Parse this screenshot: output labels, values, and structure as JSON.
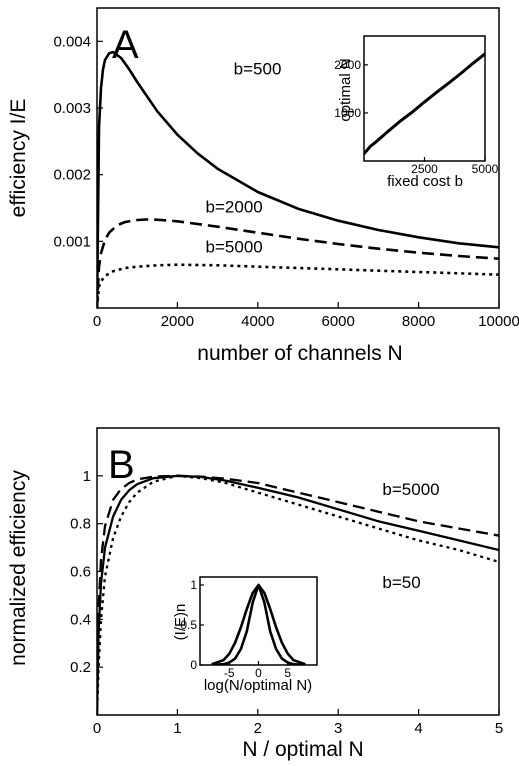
{
  "chart_data": [
    {
      "type": "line",
      "panel_letter": "A",
      "xlabel": "number of channels N",
      "ylabel": "efficiency I/E",
      "xlim": [
        0,
        10000
      ],
      "ylim": [
        0,
        0.0045
      ],
      "xticks": [
        0,
        2000,
        4000,
        6000,
        8000,
        10000
      ],
      "xtick_labels": [
        "0",
        "2000",
        "4000",
        "6000",
        "8000",
        "10000"
      ],
      "yticks": [
        0.001,
        0.002,
        0.003,
        0.004
      ],
      "ytick_labels": [
        "0.001",
        "0.002",
        "0.003",
        "0.004"
      ],
      "grid": false,
      "series": [
        {
          "name": "b=500",
          "style": "solid",
          "x": [
            0,
            50,
            100,
            150,
            200,
            300,
            400,
            600,
            800,
            1000,
            1500,
            2000,
            2500,
            3000,
            4000,
            5000,
            6000,
            7000,
            8000,
            9000,
            10000
          ],
          "y": [
            0,
            0.0027,
            0.0033,
            0.00358,
            0.00372,
            0.00382,
            0.00384,
            0.00375,
            0.00358,
            0.00339,
            0.00295,
            0.0026,
            0.00232,
            0.00209,
            0.00174,
            0.00149,
            0.00131,
            0.00117,
            0.00106,
            0.00097,
            0.00091
          ]
        },
        {
          "name": "b=2000",
          "style": "dashed",
          "x": [
            0,
            50,
            100,
            200,
            300,
            500,
            700,
            1000,
            1300,
            1600,
            2000,
            3000,
            4000,
            5000,
            6000,
            7000,
            8000,
            9000,
            10000
          ],
          "y": [
            0,
            0.00062,
            0.00082,
            0.00102,
            0.00113,
            0.00124,
            0.00129,
            0.00132,
            0.00133,
            0.00132,
            0.0013,
            0.00122,
            0.00113,
            0.00104,
            0.00096,
            0.00089,
            0.00083,
            0.00078,
            0.00074
          ]
        },
        {
          "name": "b=5000",
          "style": "dotted",
          "x": [
            0,
            50,
            100,
            200,
            400,
            700,
            1000,
            1500,
            2000,
            3000,
            4000,
            5000,
            6000,
            7000,
            8000,
            9000,
            10000
          ],
          "y": [
            0,
            0.00032,
            0.0004,
            0.00048,
            0.00055,
            0.0006,
            0.00062,
            0.00064,
            0.00065,
            0.00064,
            0.00062,
            0.0006,
            0.00058,
            0.00056,
            0.00054,
            0.00052,
            0.0005
          ]
        }
      ],
      "annotations": [
        {
          "text": "b=500",
          "x": 3400,
          "y": 0.0035
        },
        {
          "text": "b=2000",
          "x": 2700,
          "y": 0.00143
        },
        {
          "text": "b=5000",
          "x": 2700,
          "y": 0.00083
        }
      ],
      "inset": {
        "xlabel": "fixed cost b",
        "ylabel": "optimal N",
        "xlim": [
          0,
          5000
        ],
        "ylim": [
          0,
          2600
        ],
        "xticks": [
          2500,
          5000
        ],
        "xtick_labels": [
          "2500",
          "5000"
        ],
        "yticks": [
          1000,
          2000
        ],
        "ytick_labels": [
          "1000",
          "2000"
        ],
        "series": [
          {
            "style": "solid",
            "x": [
              0,
              250,
              500,
              1000,
              1500,
              2000,
              2500,
              3000,
              3500,
              4000,
              4500,
              5000
            ],
            "y": [
              150,
              300,
              400,
              620,
              830,
              1020,
              1230,
              1430,
              1620,
              1820,
              2030,
              2230
            ]
          }
        ]
      }
    },
    {
      "type": "line",
      "panel_letter": "B",
      "xlabel": "N / optimal N",
      "ylabel": "normalized efficiency",
      "xlim": [
        0,
        5
      ],
      "ylim": [
        0,
        1.2
      ],
      "xticks": [
        0,
        1,
        2,
        3,
        4,
        5
      ],
      "xtick_labels": [
        "0",
        "1",
        "2",
        "3",
        "4",
        "5"
      ],
      "yticks": [
        0.2,
        0.4,
        0.6,
        0.8,
        1
      ],
      "ytick_labels": [
        "0.2",
        "0.4",
        "0.6",
        "0.8",
        "1"
      ],
      "grid": false,
      "series": [
        {
          "style": "solid",
          "x": [
            0,
            0.02,
            0.05,
            0.1,
            0.2,
            0.3,
            0.4,
            0.5,
            0.7,
            1,
            1.3,
            1.6,
            2,
            2.5,
            3,
            3.5,
            4,
            4.5,
            5
          ],
          "y": [
            0,
            0.35,
            0.55,
            0.7,
            0.83,
            0.9,
            0.94,
            0.965,
            0.99,
            1,
            0.995,
            0.98,
            0.95,
            0.91,
            0.86,
            0.81,
            0.77,
            0.73,
            0.69
          ]
        },
        {
          "style": "dashed",
          "x": [
            0,
            0.02,
            0.05,
            0.1,
            0.2,
            0.3,
            0.4,
            0.5,
            0.7,
            1,
            1.3,
            1.6,
            2,
            2.5,
            3,
            3.5,
            4,
            4.5,
            5
          ],
          "y": [
            0,
            0.45,
            0.65,
            0.79,
            0.9,
            0.945,
            0.97,
            0.985,
            0.997,
            1,
            0.997,
            0.988,
            0.97,
            0.93,
            0.89,
            0.85,
            0.81,
            0.78,
            0.75
          ]
        },
        {
          "style": "dotted",
          "x": [
            0,
            0.02,
            0.05,
            0.1,
            0.2,
            0.3,
            0.4,
            0.5,
            0.7,
            1,
            1.3,
            1.6,
            2,
            2.5,
            3,
            3.5,
            4,
            4.5,
            5
          ],
          "y": [
            0,
            0.2,
            0.4,
            0.58,
            0.74,
            0.83,
            0.89,
            0.93,
            0.975,
            1,
            0.99,
            0.97,
            0.93,
            0.88,
            0.83,
            0.78,
            0.73,
            0.69,
            0.64
          ]
        }
      ],
      "annotations": [
        {
          "text": "b=5000",
          "x": 3.55,
          "y": 0.92
        },
        {
          "text": "b=50",
          "x": 3.55,
          "y": 0.53
        }
      ],
      "inset": {
        "xlabel": "log(N/optimal N)",
        "ylabel": "(I/E)n",
        "xlim": [
          -10,
          10
        ],
        "ylim": [
          0,
          1.1
        ],
        "xticks": [
          -5,
          0,
          5
        ],
        "xtick_labels": [
          "-5",
          "0",
          "5"
        ],
        "yticks": [
          0,
          0.5,
          1
        ],
        "ytick_labels": [
          "0",
          "0.5",
          "1"
        ],
        "series": [
          {
            "style": "solid",
            "x": [
              -8,
              -6,
              -5,
              -4,
              -3,
              -2,
              -1,
              0,
              1,
              2,
              3,
              4,
              5,
              6,
              8
            ],
            "y": [
              0.01,
              0.06,
              0.14,
              0.28,
              0.47,
              0.7,
              0.9,
              1,
              0.9,
              0.7,
              0.47,
              0.28,
              0.14,
              0.06,
              0.01
            ]
          },
          {
            "style": "solid",
            "x": [
              -8,
              -6,
              -5,
              -4,
              -3,
              -2,
              -1,
              0,
              1,
              2,
              3,
              4,
              5,
              6,
              8
            ],
            "y": [
              0,
              0.01,
              0.03,
              0.08,
              0.2,
              0.42,
              0.78,
              1,
              0.78,
              0.42,
              0.2,
              0.08,
              0.03,
              0.01,
              0
            ]
          }
        ]
      }
    }
  ]
}
